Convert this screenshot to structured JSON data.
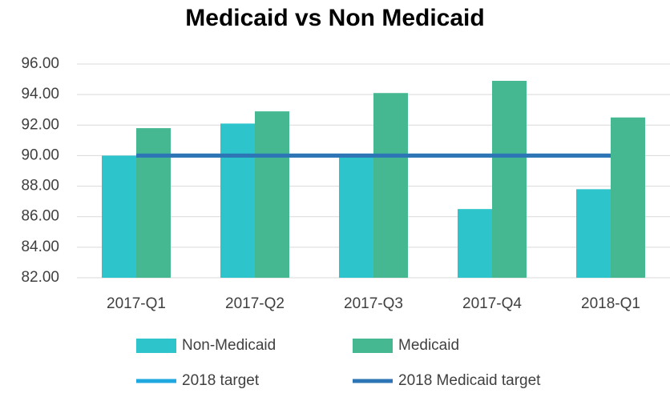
{
  "chart_data": {
    "type": "bar",
    "title": "Medicaid vs Non Medicaid",
    "categories": [
      "2017-Q1",
      "2017-Q2",
      "2017-Q3",
      "2017-Q4",
      "2018-Q1"
    ],
    "series": [
      {
        "name": "Non-Medicaid",
        "color": "#2ec4cc",
        "type": "bar",
        "values": [
          90.0,
          92.1,
          89.9,
          86.5,
          87.8
        ]
      },
      {
        "name": "Medicaid",
        "color": "#45b891",
        "type": "bar",
        "values": [
          91.8,
          92.9,
          94.1,
          94.9,
          92.5
        ]
      },
      {
        "name": "2018 target",
        "color": "#1fa8e0",
        "type": "line",
        "values": [
          90,
          90,
          90,
          90,
          90
        ]
      },
      {
        "name": "2018 Medicaid target",
        "color": "#2e75b6",
        "type": "line",
        "values": [
          90,
          90,
          90,
          90,
          90
        ]
      }
    ],
    "ylim": [
      82,
      96
    ],
    "yticks": [
      {
        "value": 82,
        "label": "82.00"
      },
      {
        "value": 84,
        "label": "84.00"
      },
      {
        "value": 86,
        "label": "86.00"
      },
      {
        "value": 88,
        "label": "88.00"
      },
      {
        "value": 90,
        "label": "90.00"
      },
      {
        "value": 92,
        "label": "92.00"
      },
      {
        "value": 94,
        "label": "94.00"
      },
      {
        "value": 96,
        "label": "96.00"
      }
    ],
    "grid": true,
    "legend": "bottom"
  }
}
